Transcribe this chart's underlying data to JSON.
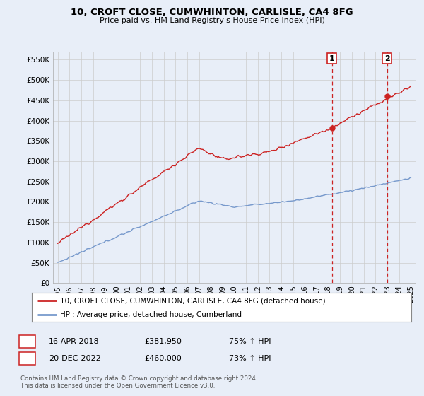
{
  "title": "10, CROFT CLOSE, CUMWHINTON, CARLISLE, CA4 8FG",
  "subtitle": "Price paid vs. HM Land Registry's House Price Index (HPI)",
  "ylabel_ticks": [
    "£0",
    "£50K",
    "£100K",
    "£150K",
    "£200K",
    "£250K",
    "£300K",
    "£350K",
    "£400K",
    "£450K",
    "£500K",
    "£550K"
  ],
  "ytick_values": [
    0,
    50000,
    100000,
    150000,
    200000,
    250000,
    300000,
    350000,
    400000,
    450000,
    500000,
    550000
  ],
  "ylim": [
    0,
    570000
  ],
  "xlim_start": 1994.6,
  "xlim_end": 2025.4,
  "hpi_color": "#7799cc",
  "price_color": "#cc2222",
  "dashed_line_color": "#cc2222",
  "sale1_x": 2018.29,
  "sale1_y": 381950,
  "sale2_x": 2022.97,
  "sale2_y": 460000,
  "sale1_label": "16-APR-2018",
  "sale1_price": "£381,950",
  "sale1_hpi": "75% ↑ HPI",
  "sale2_label": "20-DEC-2022",
  "sale2_price": "£460,000",
  "sale2_hpi": "73% ↑ HPI",
  "legend_line1": "10, CROFT CLOSE, CUMWHINTON, CARLISLE, CA4 8FG (detached house)",
  "legend_line2": "HPI: Average price, detached house, Cumberland",
  "footnote": "Contains HM Land Registry data © Crown copyright and database right 2024.\nThis data is licensed under the Open Government Licence v3.0.",
  "background_color": "#e8eef8",
  "plot_bg_color": "#e8eef8",
  "grid_color": "#cccccc",
  "xtick_years": [
    1995,
    1996,
    1997,
    1998,
    1999,
    2000,
    2001,
    2002,
    2003,
    2004,
    2005,
    2006,
    2007,
    2008,
    2009,
    2010,
    2011,
    2012,
    2013,
    2014,
    2015,
    2016,
    2017,
    2018,
    2019,
    2020,
    2021,
    2022,
    2023,
    2024,
    2025
  ]
}
